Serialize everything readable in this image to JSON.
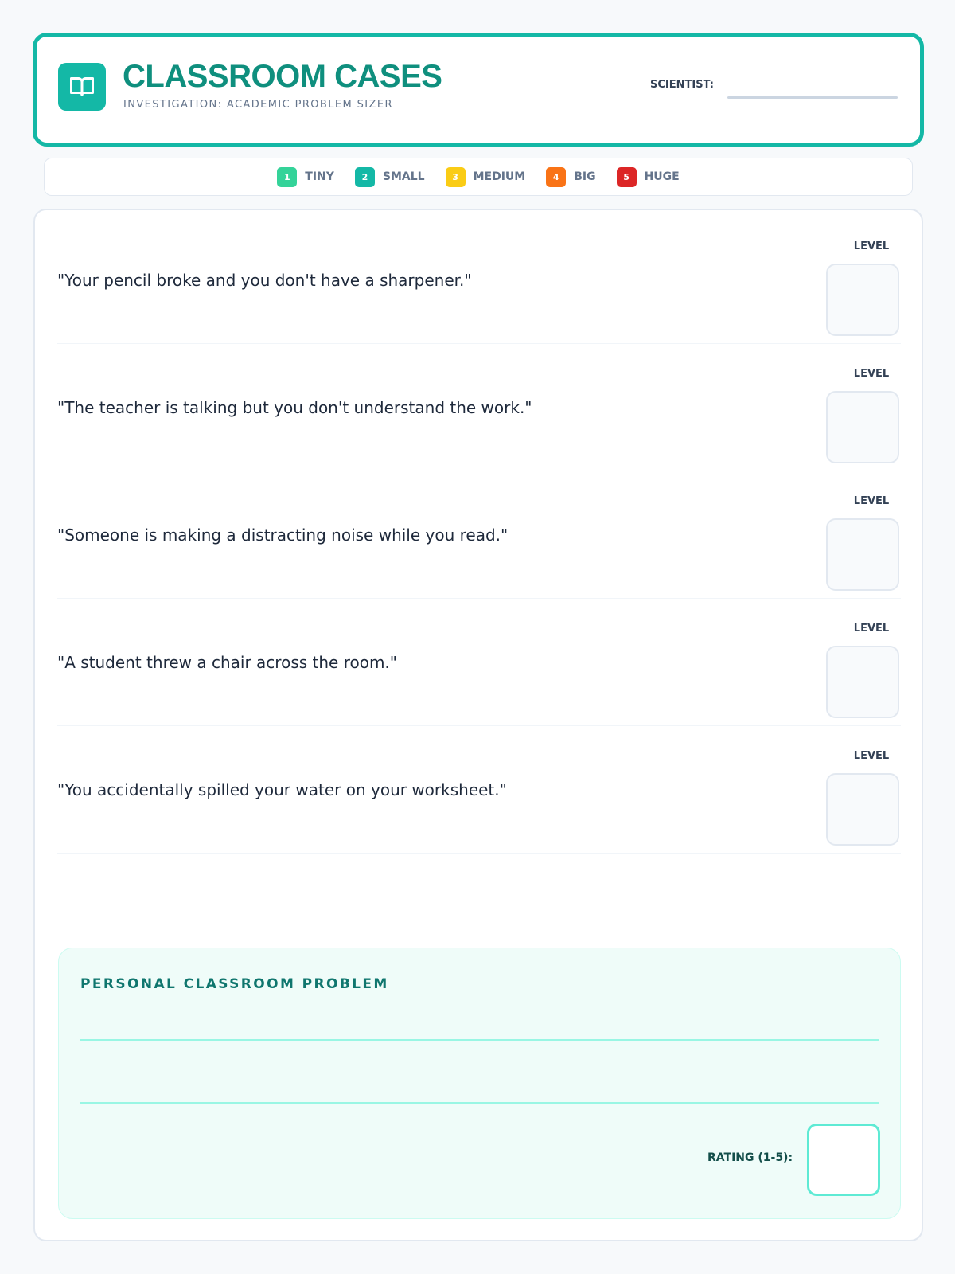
{
  "header": {
    "title": "CLASSROOM CASES",
    "subtitle": "INVESTIGATION: ACADEMIC PROBLEM SIZER",
    "scientist_label": "SCIENTIST:",
    "scientist_value": "",
    "icon": "book-open-icon"
  },
  "legend": [
    {
      "num": "1",
      "label": "TINY",
      "color": "#34d399"
    },
    {
      "num": "2",
      "label": "SMALL",
      "color": "#14b8a6"
    },
    {
      "num": "3",
      "label": "MEDIUM",
      "color": "#facc15"
    },
    {
      "num": "4",
      "label": "BIG",
      "color": "#f97316"
    },
    {
      "num": "5",
      "label": "HUGE",
      "color": "#dc2626"
    }
  ],
  "cases": [
    {
      "text": "\"Your pencil broke and you don't have a sharpener.\"",
      "level_label": "LEVEL",
      "level": ""
    },
    {
      "text": "\"The teacher is talking but you don't understand the work.\"",
      "level_label": "LEVEL",
      "level": ""
    },
    {
      "text": "\"Someone is making a distracting noise while you read.\"",
      "level_label": "LEVEL",
      "level": ""
    },
    {
      "text": "\"A student threw a chair across the room.\"",
      "level_label": "LEVEL",
      "level": ""
    },
    {
      "text": "\"You accidentally spilled your water on your worksheet.\"",
      "level_label": "LEVEL",
      "level": ""
    }
  ],
  "personal": {
    "title": "PERSONAL CLASSROOM PROBLEM",
    "rating_label": "RATING (1-5):",
    "rating": ""
  }
}
